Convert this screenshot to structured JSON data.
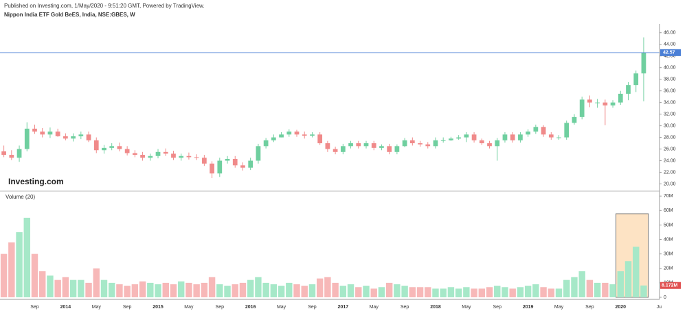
{
  "published": "Published on Investing.com, 1/May/2020 - 9:51:20 GMT, Powered by TradingView.",
  "logo": "Investing.com",
  "chart_data": {
    "type": "candlestick",
    "title": "Nippon India ETF Gold BeES, India, NSE:GBES, W",
    "categories": [
      null,
      null,
      null,
      null,
      "Sep",
      null,
      null,
      null,
      "2014",
      null,
      null,
      null,
      "May",
      null,
      null,
      null,
      "Sep",
      null,
      null,
      null,
      "2015",
      null,
      null,
      null,
      "May",
      null,
      null,
      null,
      "Sep",
      null,
      null,
      null,
      "2016",
      null,
      null,
      null,
      "May",
      null,
      null,
      null,
      "Sep",
      null,
      null,
      null,
      "2017",
      null,
      null,
      null,
      "May",
      null,
      null,
      null,
      "Sep",
      null,
      null,
      null,
      "2018",
      null,
      null,
      null,
      "May",
      null,
      null,
      null,
      "Sep",
      null,
      null,
      null,
      "2019",
      null,
      null,
      null,
      "May",
      null,
      null,
      null,
      "Sep",
      null,
      null,
      null,
      "2020",
      null,
      null,
      null,
      null,
      "Ju"
    ],
    "open": [
      25.6,
      25,
      24.5,
      26,
      29.5,
      29,
      28.5,
      29,
      28.2,
      27.8,
      28.2,
      28.5,
      27.5,
      25.8,
      26.2,
      26.5,
      26,
      25.3,
      25,
      24.5,
      24.8,
      25.5,
      25.2,
      24.5,
      24.8,
      24.6,
      24.5,
      23.5,
      21.8,
      24,
      24.3,
      23.2,
      22.8,
      24,
      26.5,
      27.5,
      28,
      28.5,
      29,
      28.5,
      28.3,
      28.5,
      27,
      26,
      25.5,
      26.5,
      27,
      26.5,
      27,
      26.2,
      26.5,
      25.5,
      26.5,
      27.5,
      27,
      26.8,
      26.5,
      27.5,
      27.5,
      27.8,
      28,
      28.5,
      27.5,
      27,
      26.5,
      27.5,
      28.5,
      27.5,
      28.5,
      29,
      29.8,
      28.5,
      28,
      28,
      30.5,
      31.5,
      34.5,
      34,
      34,
      33.5,
      34,
      35.5,
      37,
      39,
      null,
      null
    ],
    "high": [
      26.6,
      25.8,
      26.6,
      30.6,
      30.2,
      29.6,
      29.7,
      29.5,
      28.7,
      28.7,
      29,
      29,
      28,
      26.7,
      27,
      27.1,
      26.5,
      25.8,
      25.5,
      25.2,
      26,
      26.1,
      25.7,
      25.2,
      25.4,
      25.1,
      25,
      23.9,
      24.5,
      24.8,
      24.8,
      23.7,
      24.5,
      26.9,
      27.9,
      28.5,
      28.9,
      29.4,
      29.3,
      29,
      28.9,
      28.9,
      27.4,
      26.4,
      26.9,
      27.4,
      27.4,
      27.4,
      27.4,
      26.8,
      26.9,
      26.8,
      27.9,
      28,
      27.4,
      27.2,
      28,
      28,
      28.1,
      28.4,
      28.9,
      28.9,
      27.8,
      27.4,
      27.9,
      28.9,
      28.9,
      28.9,
      29.4,
      30.2,
      30.1,
      28.9,
      28.4,
      30.9,
      32,
      35,
      35.2,
      34.6,
      34.5,
      34.4,
      36,
      37.5,
      39.5,
      45.2,
      null,
      null
    ],
    "low": [
      24.6,
      24.1,
      23.8,
      25.6,
      28.6,
      28,
      27.9,
      28.1,
      27.5,
      27.3,
      27.7,
      27.2,
      25.3,
      25.2,
      25.8,
      25.6,
      24.9,
      24.6,
      24,
      24,
      24.4,
      24.8,
      24.1,
      24,
      24.2,
      24.1,
      23.1,
      21,
      21.2,
      23.5,
      22.8,
      22.3,
      22.4,
      23.5,
      26.1,
      27.2,
      28,
      28.1,
      28.1,
      27.8,
      28,
      26.7,
      25.5,
      25.1,
      25.1,
      26.1,
      26.1,
      26.1,
      25.8,
      25.8,
      25.1,
      25.1,
      26.3,
      26.6,
      26.4,
      26.1,
      26.1,
      27.1,
      27.4,
      27.6,
      27.2,
      27.1,
      26.7,
      26.1,
      24,
      27.1,
      27.1,
      27.1,
      28.1,
      28.6,
      28.1,
      27.6,
      27.6,
      27.6,
      30.2,
      31.1,
      33.2,
      33.1,
      30.1,
      33.1,
      33.6,
      34.4,
      35.8,
      34.2,
      null,
      null
    ],
    "close": [
      25,
      24.5,
      26,
      29.5,
      29,
      28.5,
      29,
      28.2,
      27.8,
      28.2,
      28.5,
      27.5,
      25.8,
      26.2,
      26.5,
      26,
      25.3,
      25,
      24.5,
      24.8,
      25.5,
      25.2,
      24.5,
      24.8,
      24.6,
      24.5,
      23.5,
      21.8,
      24,
      24.3,
      23.2,
      22.8,
      24,
      26.5,
      27.5,
      28,
      28.5,
      29,
      28.5,
      28.3,
      28.5,
      27,
      26,
      25.5,
      26.5,
      27,
      26.5,
      27,
      26.2,
      26.5,
      25.5,
      26.5,
      27.5,
      27,
      26.8,
      26.5,
      27.5,
      27.5,
      27.8,
      28,
      28.5,
      27.5,
      27,
      26.5,
      27.5,
      28.5,
      27.5,
      28.5,
      29,
      29.8,
      28.5,
      28,
      28,
      30.5,
      31.5,
      34.5,
      34,
      34,
      33.5,
      34,
      35.5,
      37,
      39,
      42.57,
      null,
      null
    ],
    "ylim": [
      19,
      47.5
    ],
    "yticks": [
      {
        "value": 20,
        "label": "20.00"
      },
      {
        "value": 22,
        "label": "22.00"
      },
      {
        "value": 24,
        "label": "24.00"
      },
      {
        "value": 26,
        "label": "26.00"
      },
      {
        "value": 28,
        "label": "28.00"
      },
      {
        "value": 30,
        "label": "30.00"
      },
      {
        "value": 32,
        "label": "32.00"
      },
      {
        "value": 34,
        "label": "34.00"
      },
      {
        "value": 36,
        "label": "36.00"
      },
      {
        "value": 38,
        "label": "38.00"
      },
      {
        "value": 40,
        "label": "40.00"
      },
      {
        "value": 42,
        "label": "42.00"
      },
      {
        "value": 44,
        "label": "44.00"
      },
      {
        "value": 46,
        "label": "46.00"
      }
    ],
    "up_color": "#6fcf9f",
    "down_color": "#f08a8a",
    "last_line_color": "#4a7fd6",
    "volume": {
      "name": "Volume (20)",
      "values": [
        30000000,
        38000000,
        45000000,
        55000000,
        30000000,
        18000000,
        15000000,
        12000000,
        14000000,
        12000000,
        12000000,
        10000000,
        20000000,
        12000000,
        10000000,
        9000000,
        8000000,
        9000000,
        11000000,
        10000000,
        9000000,
        10000000,
        9000000,
        11000000,
        10000000,
        9000000,
        10000000,
        14000000,
        9000000,
        8000000,
        9000000,
        10000000,
        12000000,
        14000000,
        10000000,
        9000000,
        8000000,
        10000000,
        9000000,
        8000000,
        9000000,
        13000000,
        14000000,
        10000000,
        8000000,
        9000000,
        7000000,
        8000000,
        6000000,
        7000000,
        10000000,
        9000000,
        8000000,
        7000000,
        7000000,
        7000000,
        6000000,
        6000000,
        7000000,
        6000000,
        7000000,
        6000000,
        6000000,
        7000000,
        8000000,
        7000000,
        6000000,
        7000000,
        8000000,
        9000000,
        7000000,
        6000000,
        6000000,
        12000000,
        14000000,
        18000000,
        12000000,
        10000000,
        10000000,
        9000000,
        18000000,
        25000000,
        35000000,
        8172000,
        null,
        null
      ],
      "last_label": "8.172M",
      "up_color": "#a6e8c8",
      "down_color": "#f7b8b8",
      "highlight_color": "#fde3c4",
      "ylim": [
        0,
        72000000
      ],
      "yticks": [
        {
          "value": 0,
          "label": "0"
        },
        {
          "value": 10000000,
          "label": "10M"
        },
        {
          "value": 20000000,
          "label": "20M"
        },
        {
          "value": 30000000,
          "label": "30M"
        },
        {
          "value": 40000000,
          "label": "40M"
        },
        {
          "value": 50000000,
          "label": "50M"
        },
        {
          "value": 60000000,
          "label": "60M"
        },
        {
          "value": 70000000,
          "label": "70M"
        }
      ]
    }
  }
}
